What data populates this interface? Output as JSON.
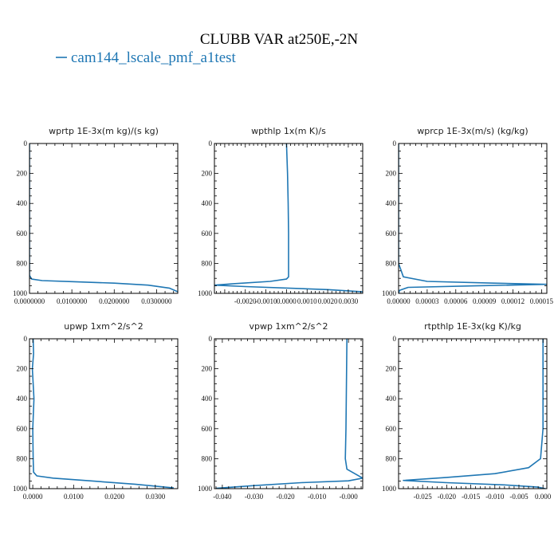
{
  "title": "CLUBB VAR at250E,-2N",
  "legend": {
    "label": "cam144_lscale_pmf_a1test",
    "color": "#1f77b4"
  },
  "chart_data": [
    {
      "type": "line",
      "title": "wprtp  1E-3x(m kg)/(s kg)",
      "xlim": [
        0,
        0.035
      ],
      "ylim": [
        1000,
        0
      ],
      "xticks": [
        0,
        0.01,
        0.02,
        0.03
      ],
      "xtick_labels": [
        "0.0000000",
        "0.0100000",
        "0.0200000",
        "0.0300000"
      ],
      "yticks": [
        0,
        200,
        400,
        600,
        800,
        1000
      ],
      "ytick_labels": [
        "0",
        "200",
        "400",
        "600",
        "800",
        "1000"
      ],
      "series": [
        {
          "x": [
            0,
            0,
            0,
            0,
            0,
            0,
            0,
            0,
            0.0005,
            0.003,
            0.01,
            0.02,
            0.028,
            0.033,
            0.0355
          ],
          "y": [
            0,
            200,
            400,
            600,
            800,
            850,
            870,
            880,
            905,
            915,
            922,
            932,
            945,
            965,
            995
          ]
        }
      ]
    },
    {
      "type": "line",
      "title": "wpthlp  1x(m K)/s",
      "xlim": [
        -0.0035,
        0.0037
      ],
      "ylim": [
        1000,
        0
      ],
      "xticks": [
        -0.002,
        -0.001,
        0,
        0.001,
        0.002,
        0.003
      ],
      "xtick_labels": [
        "-0.0020",
        "-0.0010",
        "0.0000",
        "0.0010",
        "0.0020",
        "0.0030"
      ],
      "yticks": [
        0,
        200,
        400,
        600,
        800,
        1000
      ],
      "ytick_labels": [
        "0",
        "200",
        "400",
        "600",
        "800",
        "1000"
      ],
      "series": [
        {
          "x": [
            0,
            5e-05,
            8e-05,
            0.0001,
            0.0001,
            0.0001,
            0,
            -0.0008,
            -0.0025,
            -0.0035,
            -0.002,
            0.002,
            0.0037
          ],
          "y": [
            0,
            200,
            400,
            600,
            800,
            890,
            905,
            920,
            935,
            945,
            955,
            975,
            990
          ]
        }
      ]
    },
    {
      "type": "line",
      "title": "wprcp  1E-3x(m/s) (kg/kg)",
      "xlim": [
        0,
        0.0001555
      ],
      "ylim": [
        1000,
        0
      ],
      "xticks": [
        0,
        3e-05,
        6e-05,
        9e-05,
        0.00012,
        0.00015
      ],
      "xtick_labels": [
        "0.00000",
        "0.00003",
        "0.00006",
        "0.00009",
        "0.00012",
        "0.00015"
      ],
      "yticks": [
        0,
        200,
        400,
        600,
        800,
        1000
      ],
      "ytick_labels": [
        "0",
        "200",
        "400",
        "600",
        "800",
        "1000"
      ],
      "series": [
        {
          "x": [
            0,
            0,
            0,
            0,
            0,
            5e-06,
            3e-05,
            0.0001,
            0.000155,
            8e-05,
            1e-05,
            1e-06,
            0
          ],
          "y": [
            0,
            200,
            400,
            600,
            800,
            890,
            920,
            932,
            940,
            950,
            960,
            980,
            1000
          ]
        }
      ]
    },
    {
      "type": "line",
      "title": "upwp  1xm^2/s^2",
      "xlim": [
        -0.0008,
        0.0355
      ],
      "ylim": [
        1000,
        0
      ],
      "xticks": [
        0,
        0.01,
        0.02,
        0.03
      ],
      "xtick_labels": [
        "0.0000",
        "0.0100",
        "0.0200",
        "0.0300"
      ],
      "yticks": [
        0,
        200,
        400,
        600,
        800,
        1000
      ],
      "ytick_labels": [
        "0",
        "200",
        "400",
        "600",
        "800",
        "1000"
      ],
      "series": [
        {
          "x": [
            0.0001,
            0.0002,
            -0.0001,
            0.0003,
            0,
            0.0001,
            0.0002,
            0.001,
            0.005,
            0.015,
            0.025,
            0.0345
          ],
          "y": [
            0,
            100,
            200,
            400,
            600,
            800,
            890,
            915,
            930,
            950,
            970,
            995
          ]
        }
      ]
    },
    {
      "type": "line",
      "title": "vpwp  1xm^2/s^2",
      "xlim": [
        -0.0425,
        0.0045
      ],
      "ylim": [
        1000,
        0
      ],
      "xticks": [
        -0.04,
        -0.03,
        -0.02,
        -0.01,
        0
      ],
      "xtick_labels": [
        "-0.040",
        "-0.030",
        "-0.020",
        "-0.010",
        "-0.000"
      ],
      "yticks": [
        0,
        200,
        400,
        600,
        800,
        1000
      ],
      "ytick_labels": [
        "0",
        "200",
        "400",
        "600",
        "800",
        "1000"
      ],
      "series": [
        {
          "x": [
            -0.0005,
            -0.0006,
            -0.0007,
            -0.0008,
            -0.001,
            -0.0005,
            0.002,
            0.0045,
            0,
            -0.015,
            -0.03,
            -0.042
          ],
          "y": [
            0,
            200,
            400,
            600,
            800,
            870,
            900,
            930,
            948,
            960,
            980,
            998
          ]
        }
      ]
    },
    {
      "type": "line",
      "title": "rtpthlp  1E-3x(kg K)/kg",
      "xlim": [
        -0.03,
        0.0008
      ],
      "ylim": [
        1000,
        0
      ],
      "xticks": [
        -0.025,
        -0.02,
        -0.015,
        -0.01,
        -0.005,
        0
      ],
      "xtick_labels": [
        "-0.025",
        "-0.020",
        "-0.015",
        "-0.010",
        "-0.005",
        "0.000"
      ],
      "yticks": [
        0,
        200,
        400,
        600,
        800,
        1000
      ],
      "ytick_labels": [
        "0",
        "200",
        "400",
        "600",
        "800",
        "1000"
      ],
      "series": [
        {
          "x": [
            0,
            0,
            0,
            0,
            -0.0005,
            -0.003,
            -0.01,
            -0.02,
            -0.029,
            -0.02,
            -0.008,
            -0.001,
            0.0005
          ],
          "y": [
            0,
            200,
            400,
            600,
            800,
            860,
            900,
            925,
            945,
            960,
            975,
            990,
            1000
          ]
        }
      ]
    }
  ]
}
